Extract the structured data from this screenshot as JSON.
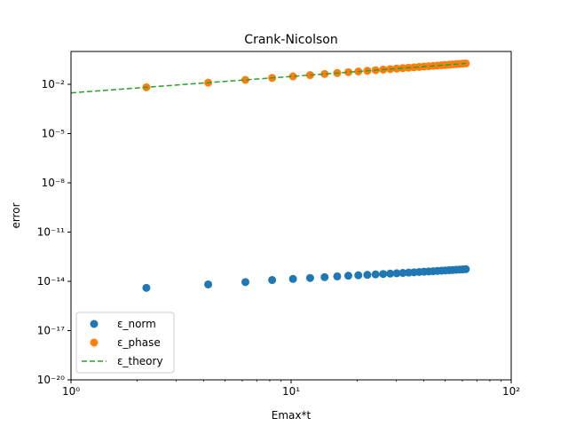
{
  "chart_data": {
    "type": "scatter",
    "title": "Crank-Nicolson",
    "xlabel": "Emax*t",
    "ylabel": "error",
    "xscale": "log",
    "yscale": "log",
    "xlim": [
      1,
      100
    ],
    "ylim": [
      1e-20,
      1
    ],
    "x_ticks": [
      {
        "value": 1,
        "label": "10⁰"
      },
      {
        "value": 10,
        "label": "10¹"
      },
      {
        "value": 100,
        "label": "10²"
      }
    ],
    "y_ticks": [
      {
        "value": 0.01,
        "label": "10⁻²"
      },
      {
        "value": 1e-05,
        "label": "10⁻⁵"
      },
      {
        "value": 1e-08,
        "label": "10⁻⁸"
      },
      {
        "value": 1e-11,
        "label": "10⁻¹¹"
      },
      {
        "value": 1e-14,
        "label": "10⁻¹⁴"
      },
      {
        "value": 1e-17,
        "label": "10⁻¹⁷"
      },
      {
        "value": 1e-20,
        "label": "10⁻²⁰"
      }
    ],
    "grid": false,
    "legend_position": "lower-left",
    "series": [
      {
        "name": "ε_norm",
        "style": "markers",
        "color": "#1f77b4",
        "x": [
          2.2,
          4.2,
          6.2,
          8.2,
          10.2,
          12.2,
          14.2,
          16.2,
          18.2,
          20.2,
          22.2,
          24.2,
          26.2,
          28.2,
          30.2,
          32.2,
          34.2,
          36.2,
          38.2,
          40.2,
          42.2,
          44.2,
          46.2,
          48.2,
          50.2,
          52.2,
          54.2,
          56.2,
          58.2,
          60.2,
          62.2
        ],
        "y": [
          4e-15,
          6.5e-15,
          9e-15,
          1.2e-14,
          1.4e-14,
          1.6e-14,
          1.8e-14,
          2e-14,
          2.2e-14,
          2.35e-14,
          2.5e-14,
          2.65e-14,
          2.8e-14,
          2.95e-14,
          3.1e-14,
          3.25e-14,
          3.4e-14,
          3.55e-14,
          3.7e-14,
          3.85e-14,
          4e-14,
          4.15e-14,
          4.3e-14,
          4.45e-14,
          4.6e-14,
          4.75e-14,
          4.9e-14,
          5.05e-14,
          5.2e-14,
          5.35e-14,
          5.5e-14
        ]
      },
      {
        "name": "ε_phase",
        "style": "markers",
        "color": "#ff7f0e",
        "x": [
          2.2,
          4.2,
          6.2,
          8.2,
          10.2,
          12.2,
          14.2,
          16.2,
          18.2,
          20.2,
          22.2,
          24.2,
          26.2,
          28.2,
          30.2,
          32.2,
          34.2,
          36.2,
          38.2,
          40.2,
          42.2,
          44.2,
          46.2,
          48.2,
          50.2,
          52.2,
          54.2,
          56.2,
          58.2,
          60.2,
          62.2
        ],
        "y": [
          0.0066,
          0.0126,
          0.0186,
          0.0246,
          0.0306,
          0.0366,
          0.0426,
          0.0486,
          0.0546,
          0.0606,
          0.0666,
          0.0726,
          0.0786,
          0.0846,
          0.0906,
          0.0966,
          0.1026,
          0.1086,
          0.1146,
          0.1206,
          0.1266,
          0.1326,
          0.1386,
          0.1446,
          0.1506,
          0.1566,
          0.1626,
          0.1686,
          0.1746,
          0.1806,
          0.1866
        ]
      },
      {
        "name": "ε_theory",
        "style": "dashed-line",
        "color": "#2ca02c",
        "x": [
          1,
          62.2
        ],
        "y": [
          0.003,
          0.1866
        ]
      }
    ]
  }
}
